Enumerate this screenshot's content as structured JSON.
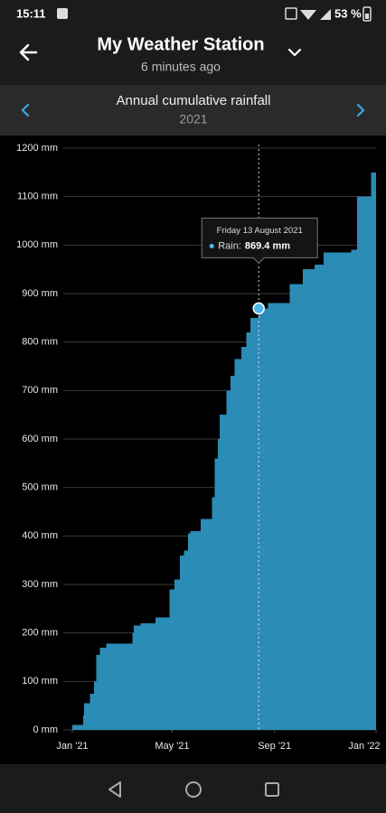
{
  "status_bar": {
    "time": "15:11",
    "battery": "53 %"
  },
  "header": {
    "title": "My Weather Station",
    "subtitle": "6 minutes ago"
  },
  "chart_data": {
    "type": "area",
    "title": "Annual cumulative rainfall",
    "subtitle": "2021",
    "color": "#2b8cb6",
    "step": true,
    "grid": true,
    "x": [
      "2021-01-01",
      "2021-01-14",
      "2021-01-15",
      "2021-01-22",
      "2021-01-27",
      "2021-01-30",
      "2021-02-03",
      "2021-02-11",
      "2021-03-14",
      "2021-03-16",
      "2021-03-24",
      "2021-04-11",
      "2021-04-28",
      "2021-05-04",
      "2021-05-10",
      "2021-05-15",
      "2021-05-20",
      "2021-05-23",
      "2021-06-04",
      "2021-06-18",
      "2021-06-21",
      "2021-06-25",
      "2021-06-27",
      "2021-07-05",
      "2021-07-10",
      "2021-07-15",
      "2021-07-23",
      "2021-07-29",
      "2021-08-03",
      "2021-08-13",
      "2021-08-24",
      "2021-09-19",
      "2021-10-05",
      "2021-10-19",
      "2021-10-30",
      "2021-12-02",
      "2021-12-09",
      "2021-12-26"
    ],
    "values": [
      10,
      30,
      55,
      75,
      100,
      155,
      170,
      178,
      200,
      215,
      220,
      232,
      290,
      310,
      360,
      370,
      405,
      410,
      435,
      480,
      560,
      600,
      650,
      700,
      730,
      765,
      790,
      820,
      850,
      869.4,
      880,
      920,
      950,
      960,
      985,
      990,
      1100,
      1150
    ],
    "xlim": [
      "2021-01-01",
      "2022-01-01"
    ],
    "xticks": [
      {
        "value": "2021-01-01",
        "label": "Jan '21"
      },
      {
        "value": "2021-05-01",
        "label": "May '21"
      },
      {
        "value": "2021-09-01",
        "label": "Sep '21"
      },
      {
        "value": "2022-01-01",
        "label": "Jan '22"
      }
    ],
    "ylim": [
      0,
      1200
    ],
    "yticks": [
      {
        "value": 0,
        "label": "0 mm"
      },
      {
        "value": 100,
        "label": "100 mm"
      },
      {
        "value": 200,
        "label": "200 mm"
      },
      {
        "value": 300,
        "label": "300 mm"
      },
      {
        "value": 400,
        "label": "400 mm"
      },
      {
        "value": 500,
        "label": "500 mm"
      },
      {
        "value": 600,
        "label": "600 mm"
      },
      {
        "value": 700,
        "label": "700 mm"
      },
      {
        "value": 800,
        "label": "800 mm"
      },
      {
        "value": 900,
        "label": "900 mm"
      },
      {
        "value": 1000,
        "label": "1000 mm"
      },
      {
        "value": 1100,
        "label": "1100 mm"
      },
      {
        "value": 1200,
        "label": "1200 mm"
      }
    ],
    "tooltip": {
      "title": "Friday 13 August 2021",
      "series_label": "Rain:",
      "value": 869.4,
      "value_label": "869.4 mm"
    }
  }
}
